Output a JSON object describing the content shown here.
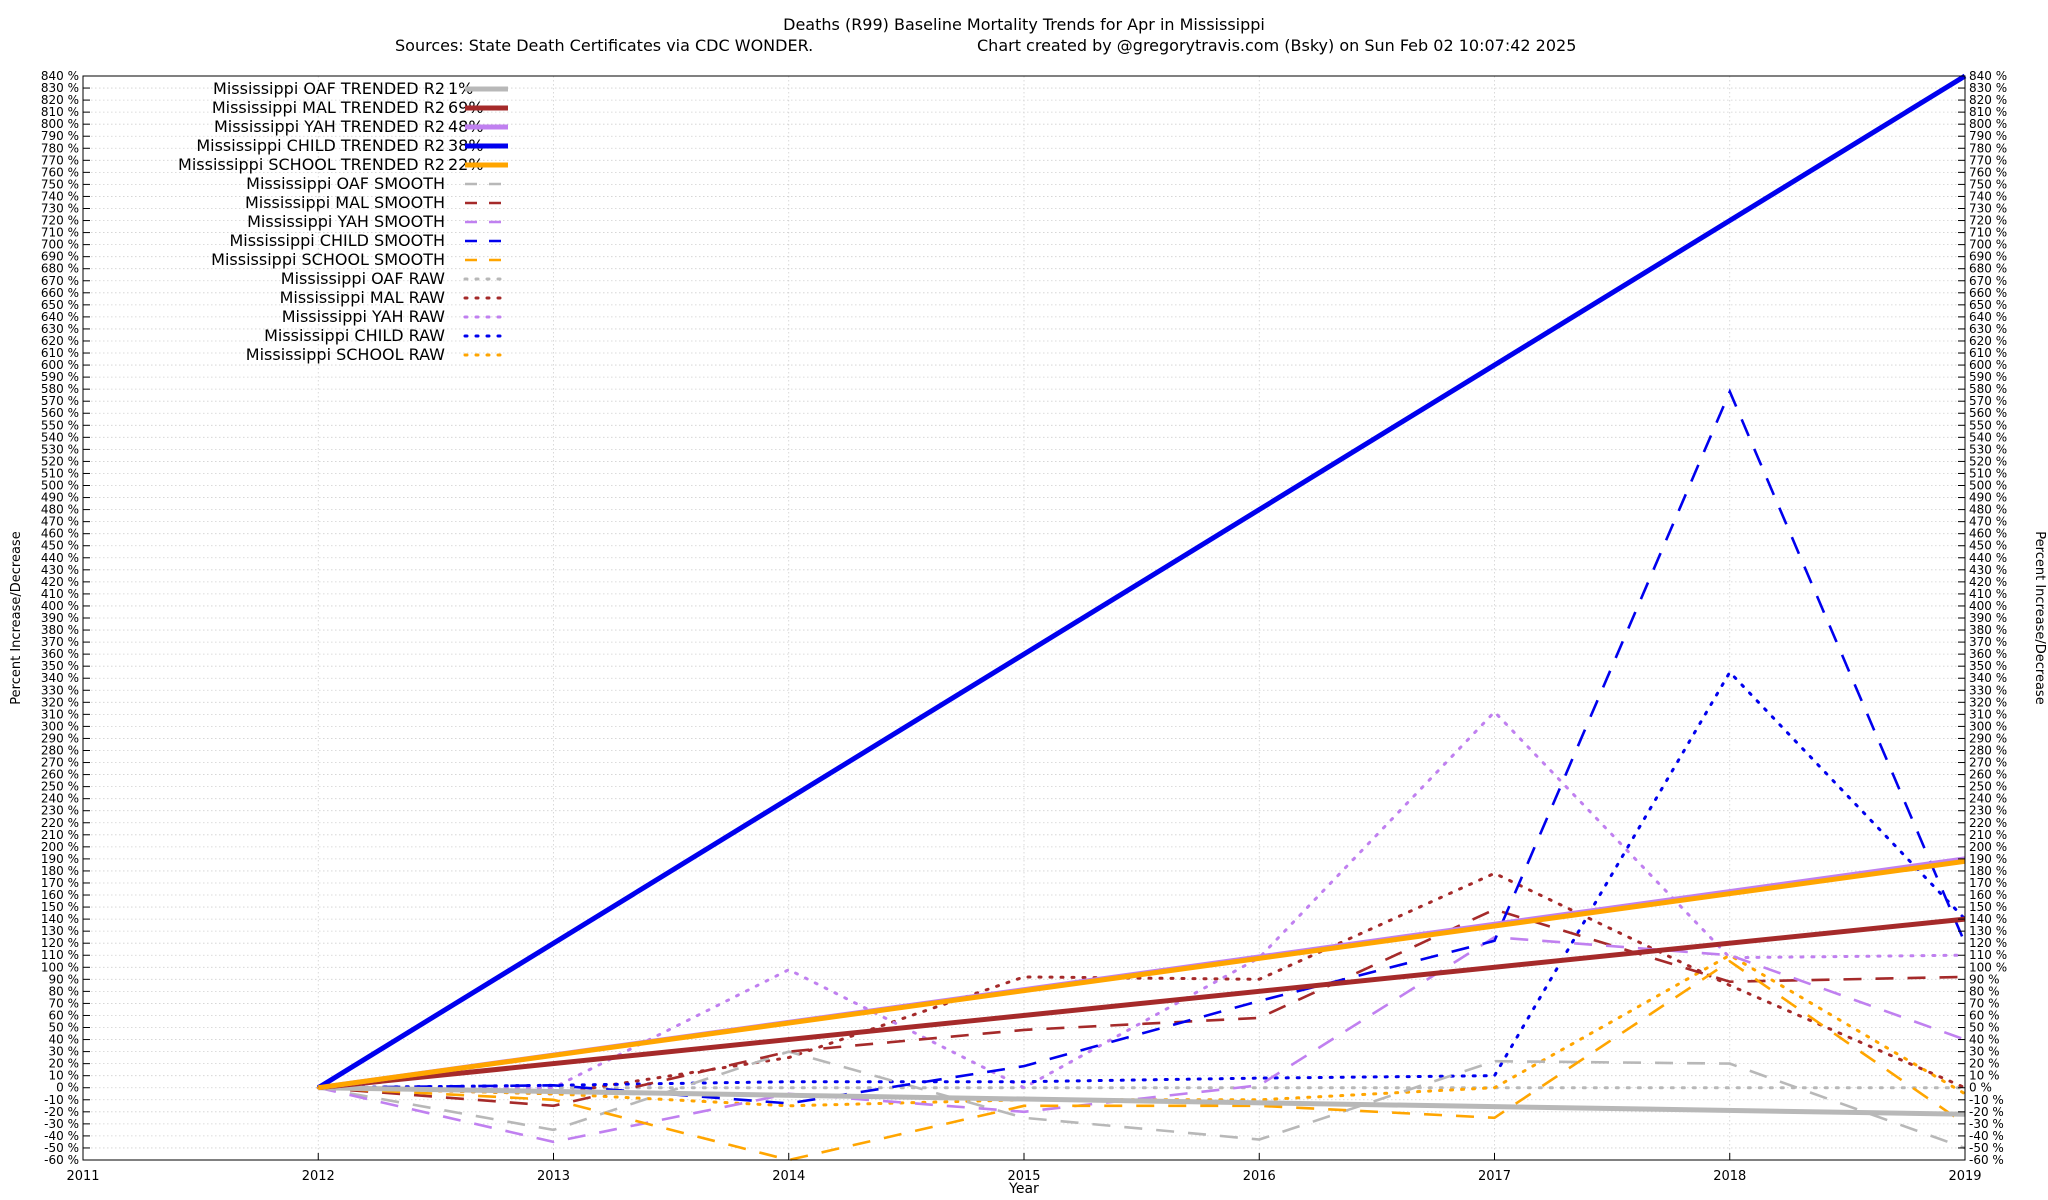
{
  "title": "Deaths (R99)  Baseline Mortality Trends for Apr in Mississippi",
  "subtitle_left": "Sources: State Death Certificates via CDC WONDER.",
  "subtitle_right": "Chart created by @gregorytravis.com (Bsky) on Sun Feb 02 10:07:42 2025",
  "chart_data": {
    "type": "line",
    "xlabel": "Year",
    "ylabel": "Percent Increase/Decrease",
    "xlim": [
      2011,
      2019
    ],
    "ylim": [
      -60,
      840
    ],
    "xticks": [
      "2011",
      "2012",
      "2013",
      "2014",
      "2015",
      "2016",
      "2017",
      "2018",
      "2019"
    ],
    "ytick_step": 10,
    "ytick_suffix": " %",
    "grid": true,
    "legend_position": "top-left",
    "series": [
      {
        "name": "Mississippi OAF TRENDED R2",
        "r2": "1%",
        "style": "solid",
        "color": "#b8b8b8",
        "x": [
          2012,
          2019
        ],
        "y": [
          0,
          -22
        ]
      },
      {
        "name": "Mississippi MAL TRENDED R2",
        "r2": "69%",
        "style": "solid",
        "color": "#a52a2a",
        "x": [
          2012,
          2019
        ],
        "y": [
          0,
          140
        ]
      },
      {
        "name": "Mississippi YAH TRENDED R2",
        "r2": "48%",
        "style": "solid",
        "color": "#c080f0",
        "x": [
          2012,
          2019
        ],
        "y": [
          0,
          190
        ]
      },
      {
        "name": "Mississippi CHILD TRENDED R2",
        "r2": "38%",
        "style": "solid",
        "color": "#0000ee",
        "x": [
          2012,
          2019
        ],
        "y": [
          0,
          840
        ]
      },
      {
        "name": "Mississippi SCHOOL TRENDED R2",
        "r2": "22%",
        "style": "solid",
        "color": "#ffa500",
        "x": [
          2012,
          2019
        ],
        "y": [
          0,
          188
        ]
      },
      {
        "name": "Mississippi OAF SMOOTH",
        "style": "dashed",
        "color": "#b8b8b8",
        "x": [
          2012,
          2013,
          2014,
          2015,
          2016,
          2017,
          2018,
          2019
        ],
        "y": [
          0,
          -35,
          30,
          -25,
          -43,
          22,
          20,
          -50
        ]
      },
      {
        "name": "Mississippi MAL SMOOTH",
        "style": "dashed",
        "color": "#a52a2a",
        "x": [
          2012,
          2013,
          2014,
          2015,
          2016,
          2017,
          2018,
          2019
        ],
        "y": [
          0,
          -15,
          30,
          48,
          58,
          148,
          88,
          92
        ]
      },
      {
        "name": "Mississippi YAH SMOOTH",
        "style": "dashed",
        "color": "#c080f0",
        "x": [
          2012,
          2013,
          2014,
          2015,
          2016,
          2017,
          2018,
          2019
        ],
        "y": [
          0,
          -45,
          -5,
          -20,
          2,
          125,
          110,
          40
        ]
      },
      {
        "name": "Mississippi CHILD SMOOTH",
        "style": "dashed",
        "color": "#0000ee",
        "x": [
          2012,
          2013,
          2014,
          2015,
          2016,
          2017,
          2018,
          2019
        ],
        "y": [
          0,
          2,
          -13,
          18,
          72,
          122,
          578,
          120
        ]
      },
      {
        "name": "Mississippi SCHOOL SMOOTH",
        "style": "dashed",
        "color": "#ffa500",
        "x": [
          2012,
          2013,
          2014,
          2015,
          2016,
          2017,
          2018,
          2019
        ],
        "y": [
          0,
          -10,
          -60,
          -15,
          -15,
          -25,
          105,
          -30
        ]
      },
      {
        "name": "Mississippi OAF RAW",
        "style": "dotted",
        "color": "#b8b8b8",
        "x": [
          2012,
          2013,
          2014,
          2015,
          2016,
          2017,
          2018,
          2019
        ],
        "y": [
          0,
          0,
          0,
          0,
          0,
          0,
          0,
          0
        ]
      },
      {
        "name": "Mississippi MAL RAW",
        "style": "dotted",
        "color": "#a52a2a",
        "x": [
          2012,
          2013,
          2014,
          2015,
          2016,
          2017,
          2018,
          2019
        ],
        "y": [
          0,
          -5,
          25,
          92,
          90,
          178,
          85,
          0
        ]
      },
      {
        "name": "Mississippi YAH RAW",
        "style": "dotted",
        "color": "#c080f0",
        "x": [
          2012,
          2013,
          2014,
          2015,
          2016,
          2017,
          2018,
          2019
        ],
        "y": [
          0,
          0,
          98,
          0,
          108,
          312,
          108,
          110
        ]
      },
      {
        "name": "Mississippi CHILD RAW",
        "style": "dotted",
        "color": "#0000ee",
        "x": [
          2012,
          2013,
          2014,
          2015,
          2016,
          2017,
          2018,
          2019
        ],
        "y": [
          0,
          2,
          5,
          5,
          8,
          10,
          345,
          140
        ]
      },
      {
        "name": "Mississippi SCHOOL RAW",
        "style": "dotted",
        "color": "#ffa500",
        "x": [
          2012,
          2013,
          2014,
          2015,
          2016,
          2017,
          2018,
          2019
        ],
        "y": [
          0,
          -5,
          -15,
          -10,
          -10,
          0,
          110,
          -5
        ]
      }
    ]
  }
}
